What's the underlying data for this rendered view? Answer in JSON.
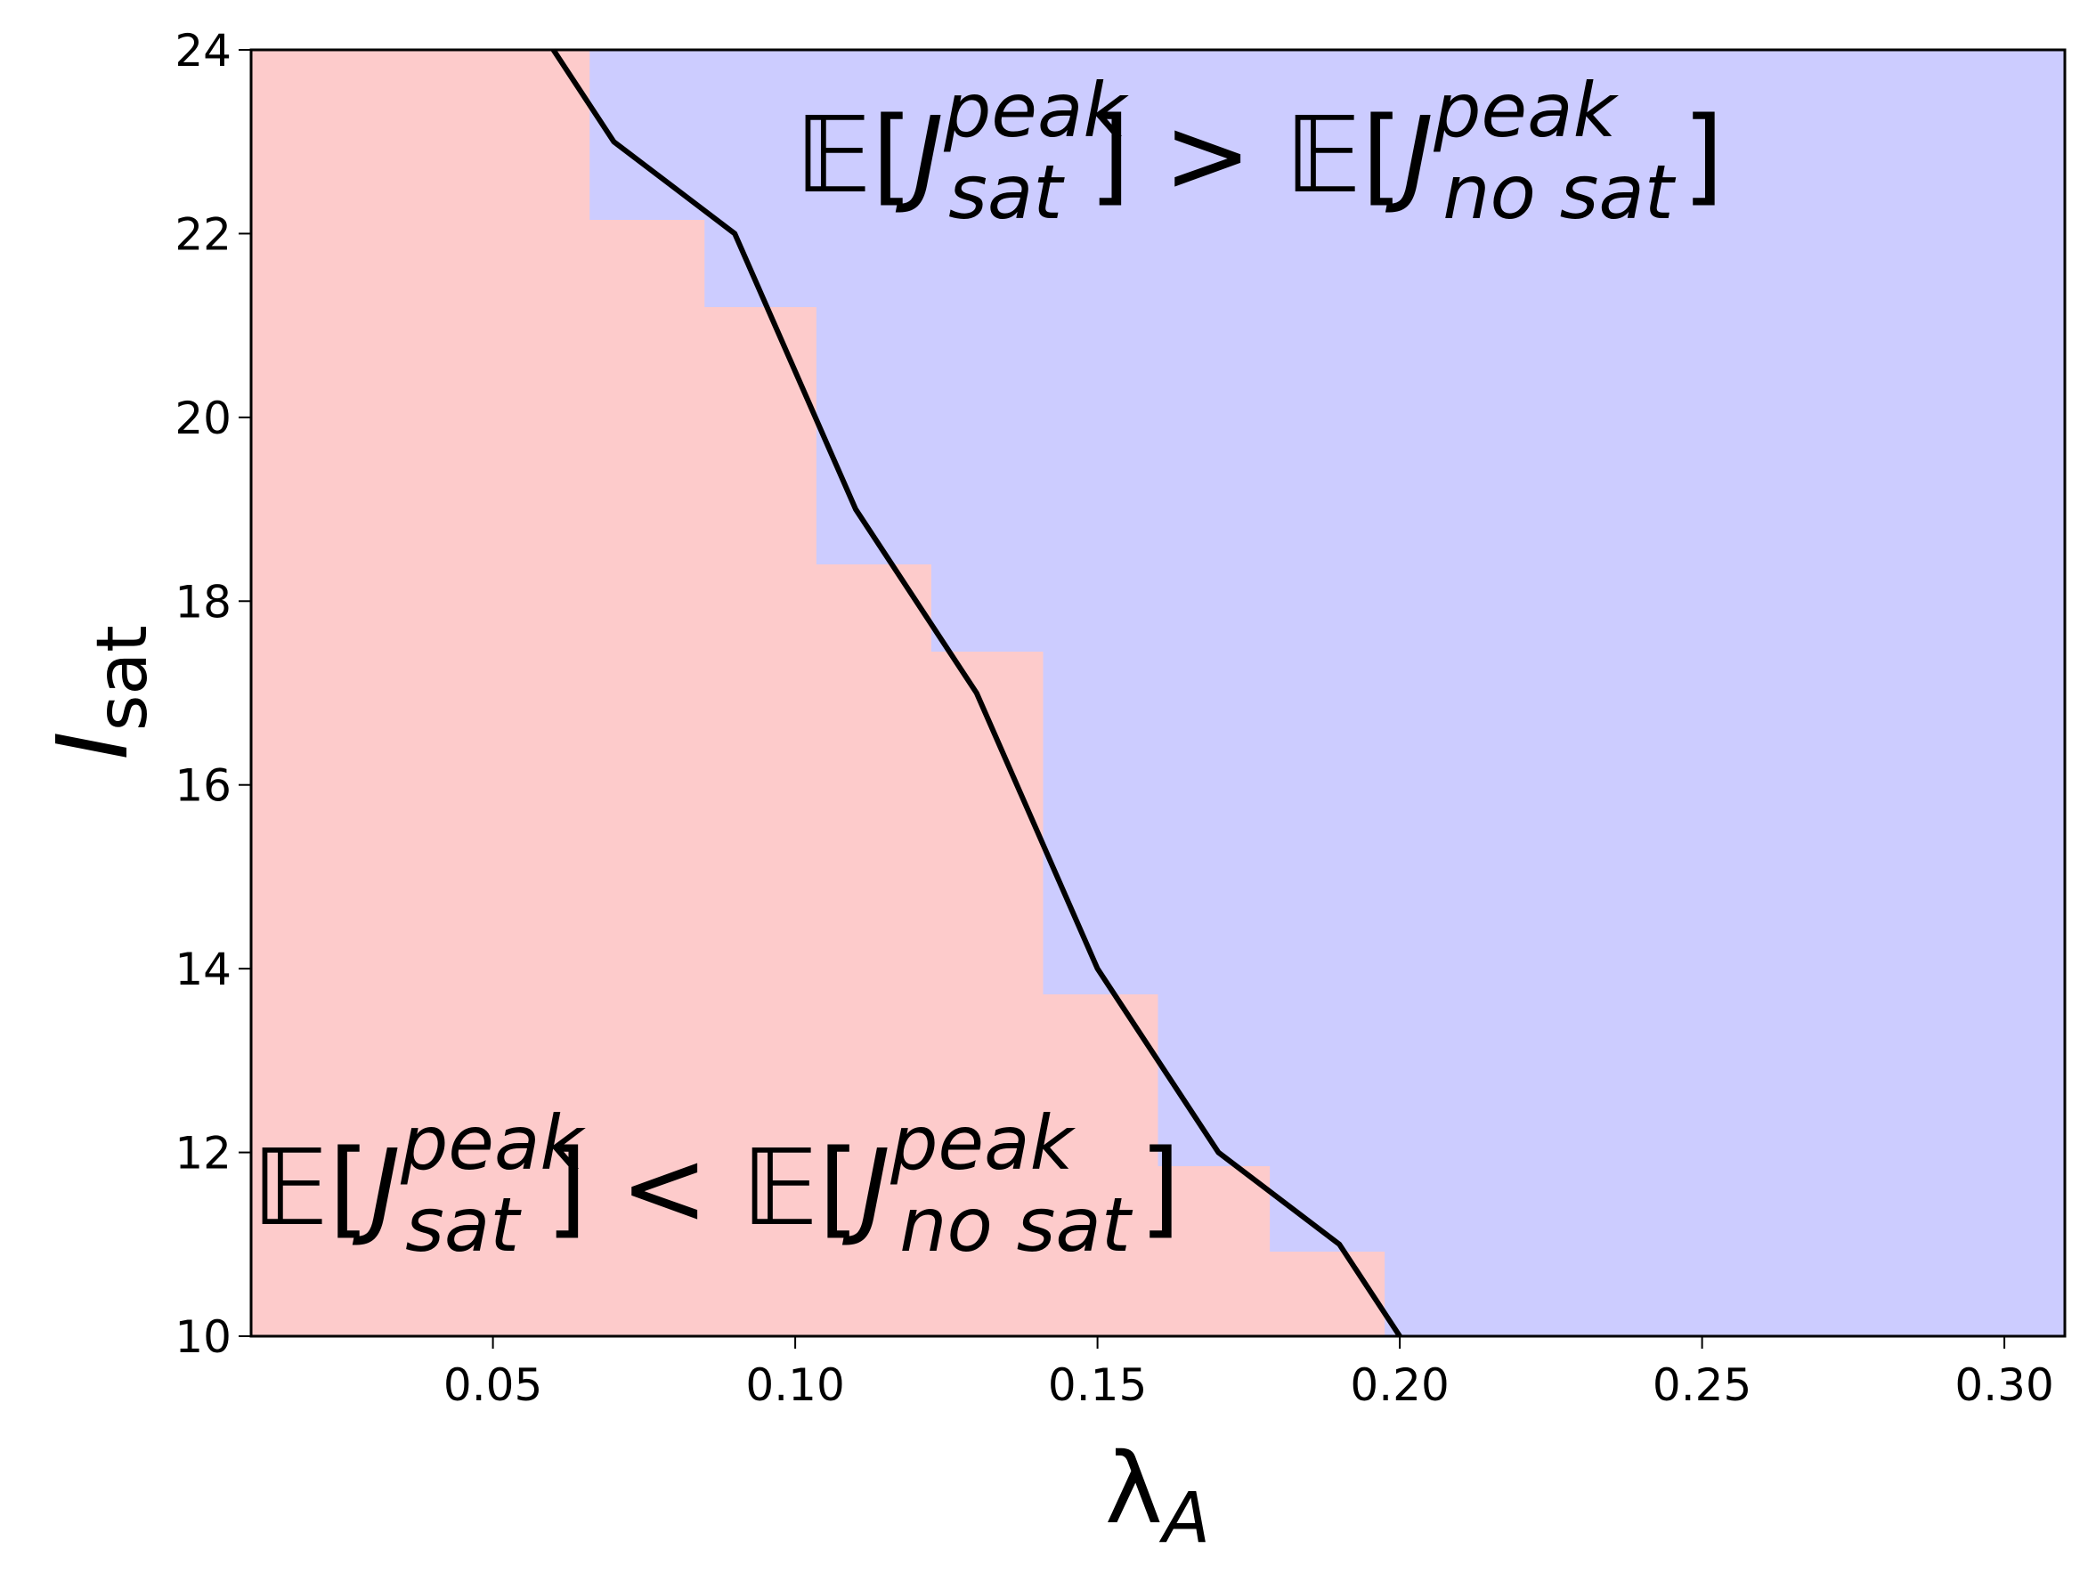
{
  "chart_data": {
    "type": "line",
    "title": "",
    "xlabel": "λ",
    "xlabel_sub": "A",
    "ylabel": "I",
    "ylabel_sub": "sat",
    "xlim": [
      0.01,
      0.31
    ],
    "ylim": [
      10,
      24
    ],
    "grid": false,
    "xticks": [
      0.05,
      0.1,
      0.15,
      0.2,
      0.25,
      0.3
    ],
    "xtick_labels": [
      "0.05",
      "0.10",
      "0.15",
      "0.20",
      "0.25",
      "0.30"
    ],
    "yticks": [
      10,
      12,
      14,
      16,
      18,
      20,
      22,
      24
    ],
    "ytick_labels": [
      "10",
      "12",
      "14",
      "16",
      "18",
      "20",
      "22",
      "24"
    ],
    "series": [
      {
        "name": "boundary",
        "color": "#000000",
        "x": [
          0.06,
          0.07,
          0.09,
          0.11,
          0.13,
          0.15,
          0.17,
          0.19,
          0.2
        ],
        "y": [
          24,
          23,
          22,
          19,
          17,
          14,
          12,
          11,
          10
        ]
      }
    ],
    "regions": {
      "lower_color": "#fdcbcb",
      "upper_color": "#ccccff",
      "steps": [
        {
          "x": 0.066,
          "y_from": 22.15,
          "y_to": 24
        },
        {
          "x": 0.085,
          "y_from": 21.2,
          "y_to": 22.15
        },
        {
          "x": 0.1035,
          "y_from": 18.4,
          "y_to": 21.2
        },
        {
          "x": 0.1225,
          "y_from": 17.45,
          "y_to": 18.4
        },
        {
          "x": 0.141,
          "y_from": 13.72,
          "y_to": 17.45
        },
        {
          "x": 0.16,
          "y_from": 11.85,
          "y_to": 13.72
        },
        {
          "x": 0.1785,
          "y_from": 10.92,
          "y_to": 11.85
        },
        {
          "x": 0.1975,
          "y_from": 10,
          "y_to": 10.92
        }
      ]
    },
    "annotations": [
      {
        "region": "upper",
        "E": "𝔼[",
        "J": "J",
        "sup": "peak",
        "sub": "sat",
        "op": "] > 𝔼[",
        "J2": "J",
        "sup2": "peak",
        "sub2": "no sat",
        "close": "]"
      },
      {
        "region": "lower",
        "E": "𝔼[",
        "J": "J",
        "sup": "peak",
        "sub": "sat",
        "op": "] < 𝔼[",
        "J2": "J",
        "sup2": "peak",
        "sub2": "no sat",
        "close": "]"
      }
    ]
  }
}
